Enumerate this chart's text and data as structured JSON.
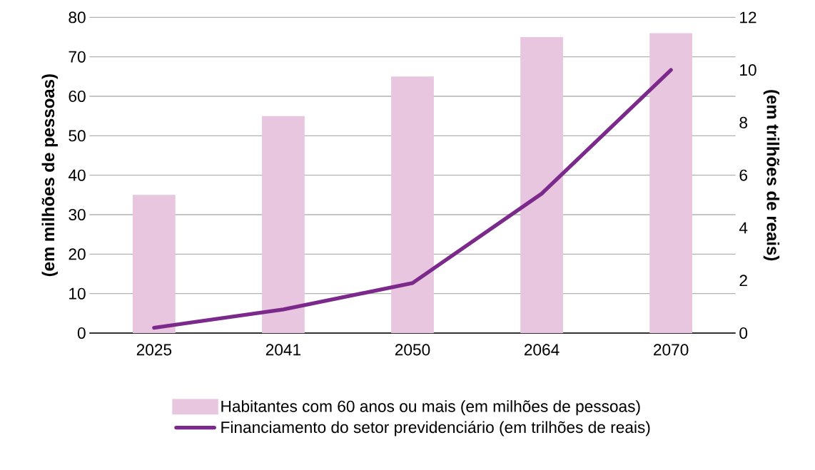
{
  "chart_data": {
    "type": "bar",
    "categories": [
      "2025",
      "2041",
      "2050",
      "2064",
      "2070"
    ],
    "series": [
      {
        "name": "Habitantes com 60 anos ou mais (em milhões de pessoas)",
        "color": "#e8c6df",
        "values": [
          35,
          55,
          65,
          75,
          76
        ]
      },
      {
        "name": "Financiamento do setor previdenciário (em trilhões de reais)",
        "color": "#7b2a8c",
        "type": "line",
        "axis": "y2",
        "values": [
          0.2,
          0.9,
          1.9,
          5.3,
          10
        ]
      }
    ],
    "ylabel": "(em milhões de pessoas)",
    "y2label": "(em trilhões de reais)",
    "ylim": [
      0,
      80
    ],
    "yticks": [
      0,
      10,
      20,
      30,
      40,
      50,
      60,
      70,
      80
    ],
    "y2lim": [
      0,
      12
    ],
    "y2ticks": [
      0,
      2,
      4,
      6,
      8,
      10,
      12
    ],
    "grid": "y",
    "legend": "bottom"
  }
}
